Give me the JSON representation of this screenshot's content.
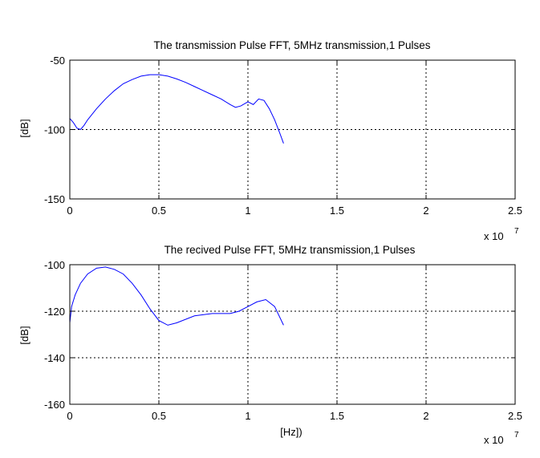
{
  "chart_data": [
    {
      "type": "line",
      "title": "The transmission Pulse FFT, 5MHz transmission,1 Pulses",
      "xlabel": "",
      "ylabel": "[dB]",
      "x_exponent_label": {
        "base": "x 10",
        "exp": "7"
      },
      "xlim": [
        0,
        25000000
      ],
      "ylim": [
        -150,
        -50
      ],
      "xtick_values": [
        0,
        5000000,
        10000000,
        15000000,
        20000000,
        25000000
      ],
      "xtick_labels": [
        "0",
        "0.5",
        "1",
        "1.5",
        "2",
        "2.5"
      ],
      "ytick_values": [
        -150,
        -100,
        -50
      ],
      "ytick_labels": [
        "-150",
        "-100",
        "-50"
      ],
      "grid": true,
      "color": "#0000ff",
      "series": [
        {
          "x": [
            0,
            200000,
            400000,
            600000,
            800000,
            1000000,
            1500000,
            2000000,
            2500000,
            3000000,
            3500000,
            4000000,
            4500000,
            5000000,
            5500000,
            6000000,
            6500000,
            7000000,
            7500000,
            8000000,
            8500000,
            9000000,
            9300000,
            9600000,
            10000000,
            10300000,
            10600000,
            10900000,
            11200000,
            11500000,
            11800000,
            12000000
          ],
          "y": [
            -92,
            -95,
            -99,
            -100,
            -97,
            -93,
            -85,
            -78,
            -72,
            -67,
            -64,
            -61.5,
            -60.5,
            -60.5,
            -61.5,
            -63.5,
            -66,
            -69,
            -72,
            -75,
            -78,
            -82,
            -84,
            -83,
            -80,
            -82,
            -78,
            -79,
            -85,
            -93,
            -103,
            -110
          ]
        }
      ]
    },
    {
      "type": "line",
      "title": "The recived Pulse FFT, 5MHz transmission,1 Pulses",
      "xlabel": "[Hz])",
      "ylabel": "[dB]",
      "x_exponent_label": {
        "base": "x 10",
        "exp": "7"
      },
      "xlim": [
        0,
        25000000
      ],
      "ylim": [
        -160,
        -100
      ],
      "xtick_values": [
        0,
        5000000,
        10000000,
        15000000,
        20000000,
        25000000
      ],
      "xtick_labels": [
        "0",
        "0.5",
        "1",
        "1.5",
        "2",
        "2.5"
      ],
      "ytick_values": [
        -160,
        -140,
        -120,
        -100
      ],
      "ytick_labels": [
        "-160",
        "-140",
        "-120",
        "-100"
      ],
      "grid": true,
      "color": "#0000ff",
      "series": [
        {
          "x": [
            0,
            100000,
            300000,
            600000,
            1000000,
            1500000,
            2000000,
            2500000,
            3000000,
            3500000,
            4000000,
            4500000,
            5000000,
            5500000,
            6000000,
            7000000,
            8000000,
            9000000,
            9500000,
            10000000,
            10500000,
            11000000,
            11500000,
            12000000
          ],
          "y": [
            -125,
            -118,
            -113,
            -108,
            -104,
            -101.5,
            -101,
            -102,
            -104,
            -108,
            -113,
            -119,
            -124,
            -126,
            -125,
            -122,
            -121,
            -121,
            -120,
            -118,
            -116,
            -115,
            -118,
            -126
          ]
        }
      ]
    }
  ]
}
